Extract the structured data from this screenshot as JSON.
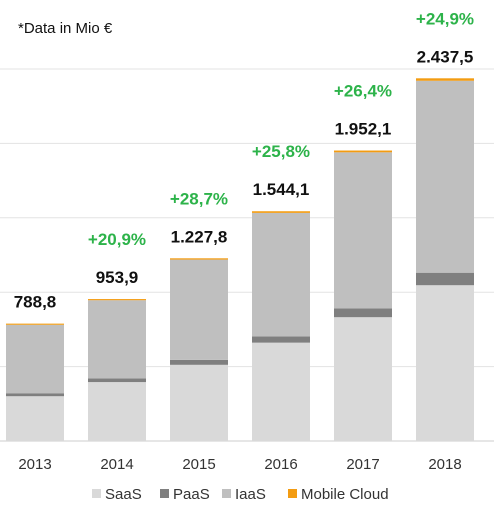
{
  "chart_data": {
    "type": "bar",
    "stacked": true,
    "note": "*Data in Mio €",
    "categories": [
      "2013",
      "2014",
      "2015",
      "2016",
      "2017",
      "2018"
    ],
    "series": [
      {
        "name": "SaaS",
        "color": "#d9d9d9",
        "values": [
          301,
          396,
          512,
          661,
          832,
          1047
        ]
      },
      {
        "name": "PaaS",
        "color": "#7f7f7f",
        "values": [
          20,
          25,
          33,
          42,
          59,
          84
        ]
      },
      {
        "name": "IaaS",
        "color": "#bfbfbf",
        "values": [
          460,
          525,
          674,
          830,
          1049,
          1290
        ]
      },
      {
        "name": "Mobile Cloud",
        "color": "#f39c12",
        "values": [
          7.8,
          7.9,
          8.8,
          11.1,
          12.1,
          16.5
        ]
      }
    ],
    "totals": [
      "788,8",
      "953,9",
      "1.227,8",
      "1.544,1",
      "1.952,1",
      "2.437,5"
    ],
    "growth": [
      "",
      "+20,9%",
      "+28,7%",
      "+25,8%",
      "+26,4%",
      "+24,9%"
    ],
    "ylim": [
      0,
      2800
    ],
    "grid": true,
    "legend": "bottom"
  }
}
